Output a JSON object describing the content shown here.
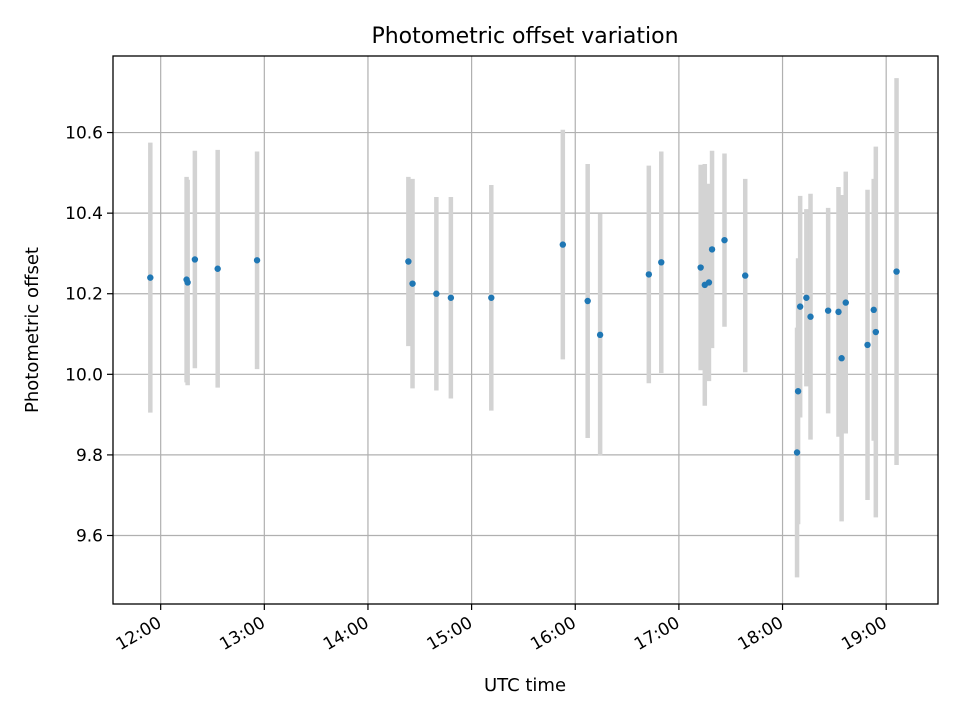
{
  "chart_data": {
    "type": "scatter",
    "title": "Photometric offset variation",
    "xlabel": "UTC time",
    "ylabel": "Photometric offset",
    "x_unit": "hours UTC",
    "xlim": [
      11.54,
      19.5
    ],
    "ylim": [
      9.43,
      10.79
    ],
    "xticks": [
      {
        "value": 12,
        "label": "12:00"
      },
      {
        "value": 13,
        "label": "13:00"
      },
      {
        "value": 14,
        "label": "14:00"
      },
      {
        "value": 15,
        "label": "15:00"
      },
      {
        "value": 16,
        "label": "16:00"
      },
      {
        "value": 17,
        "label": "17:00"
      },
      {
        "value": 18,
        "label": "18:00"
      },
      {
        "value": 19,
        "label": "19:00"
      }
    ],
    "yticks": [
      {
        "value": 9.6,
        "label": "9.6"
      },
      {
        "value": 9.8,
        "label": "9.8"
      },
      {
        "value": 10.0,
        "label": "10.0"
      },
      {
        "value": 10.2,
        "label": "10.2"
      },
      {
        "value": 10.4,
        "label": "10.4"
      },
      {
        "value": 10.6,
        "label": "10.6"
      }
    ],
    "grid": true,
    "colors": {
      "marker": "#1f77b4",
      "errorbar": "#d3d3d3",
      "grid": "#b0b0b0"
    },
    "points": [
      {
        "x": 11.9,
        "y": 10.24,
        "err": 0.335
      },
      {
        "x": 12.25,
        "y": 10.235,
        "err": 0.255
      },
      {
        "x": 12.26,
        "y": 10.228,
        "err": 0.255
      },
      {
        "x": 12.33,
        "y": 10.285,
        "err": 0.27
      },
      {
        "x": 12.55,
        "y": 10.262,
        "err": 0.295
      },
      {
        "x": 12.93,
        "y": 10.283,
        "err": 0.27
      },
      {
        "x": 14.39,
        "y": 10.28,
        "err": 0.21
      },
      {
        "x": 14.43,
        "y": 10.225,
        "err": 0.26
      },
      {
        "x": 14.66,
        "y": 10.2,
        "err": 0.24
      },
      {
        "x": 14.8,
        "y": 10.19,
        "err": 0.25
      },
      {
        "x": 15.19,
        "y": 10.19,
        "err": 0.28
      },
      {
        "x": 15.88,
        "y": 10.322,
        "err": 0.285
      },
      {
        "x": 16.12,
        "y": 10.182,
        "err": 0.34
      },
      {
        "x": 16.24,
        "y": 10.098,
        "err": 0.3
      },
      {
        "x": 16.71,
        "y": 10.248,
        "err": 0.27
      },
      {
        "x": 16.83,
        "y": 10.278,
        "err": 0.275
      },
      {
        "x": 17.21,
        "y": 10.265,
        "err": 0.255
      },
      {
        "x": 17.25,
        "y": 10.222,
        "err": 0.3
      },
      {
        "x": 17.29,
        "y": 10.228,
        "err": 0.245
      },
      {
        "x": 17.32,
        "y": 10.31,
        "err": 0.245
      },
      {
        "x": 17.44,
        "y": 10.333,
        "err": 0.215
      },
      {
        "x": 17.64,
        "y": 10.245,
        "err": 0.24
      },
      {
        "x": 18.14,
        "y": 9.806,
        "err": 0.31
      },
      {
        "x": 18.15,
        "y": 9.958,
        "err": 0.33
      },
      {
        "x": 18.17,
        "y": 10.168,
        "err": 0.275
      },
      {
        "x": 18.23,
        "y": 10.19,
        "err": 0.22
      },
      {
        "x": 18.27,
        "y": 10.143,
        "err": 0.305
      },
      {
        "x": 18.44,
        "y": 10.158,
        "err": 0.255
      },
      {
        "x": 18.54,
        "y": 10.155,
        "err": 0.31
      },
      {
        "x": 18.57,
        "y": 10.04,
        "err": 0.405
      },
      {
        "x": 18.61,
        "y": 10.178,
        "err": 0.325
      },
      {
        "x": 18.82,
        "y": 10.073,
        "err": 0.385
      },
      {
        "x": 18.88,
        "y": 10.16,
        "err": 0.325
      },
      {
        "x": 18.9,
        "y": 10.105,
        "err": 0.46
      },
      {
        "x": 19.1,
        "y": 10.255,
        "err": 0.48
      }
    ]
  }
}
